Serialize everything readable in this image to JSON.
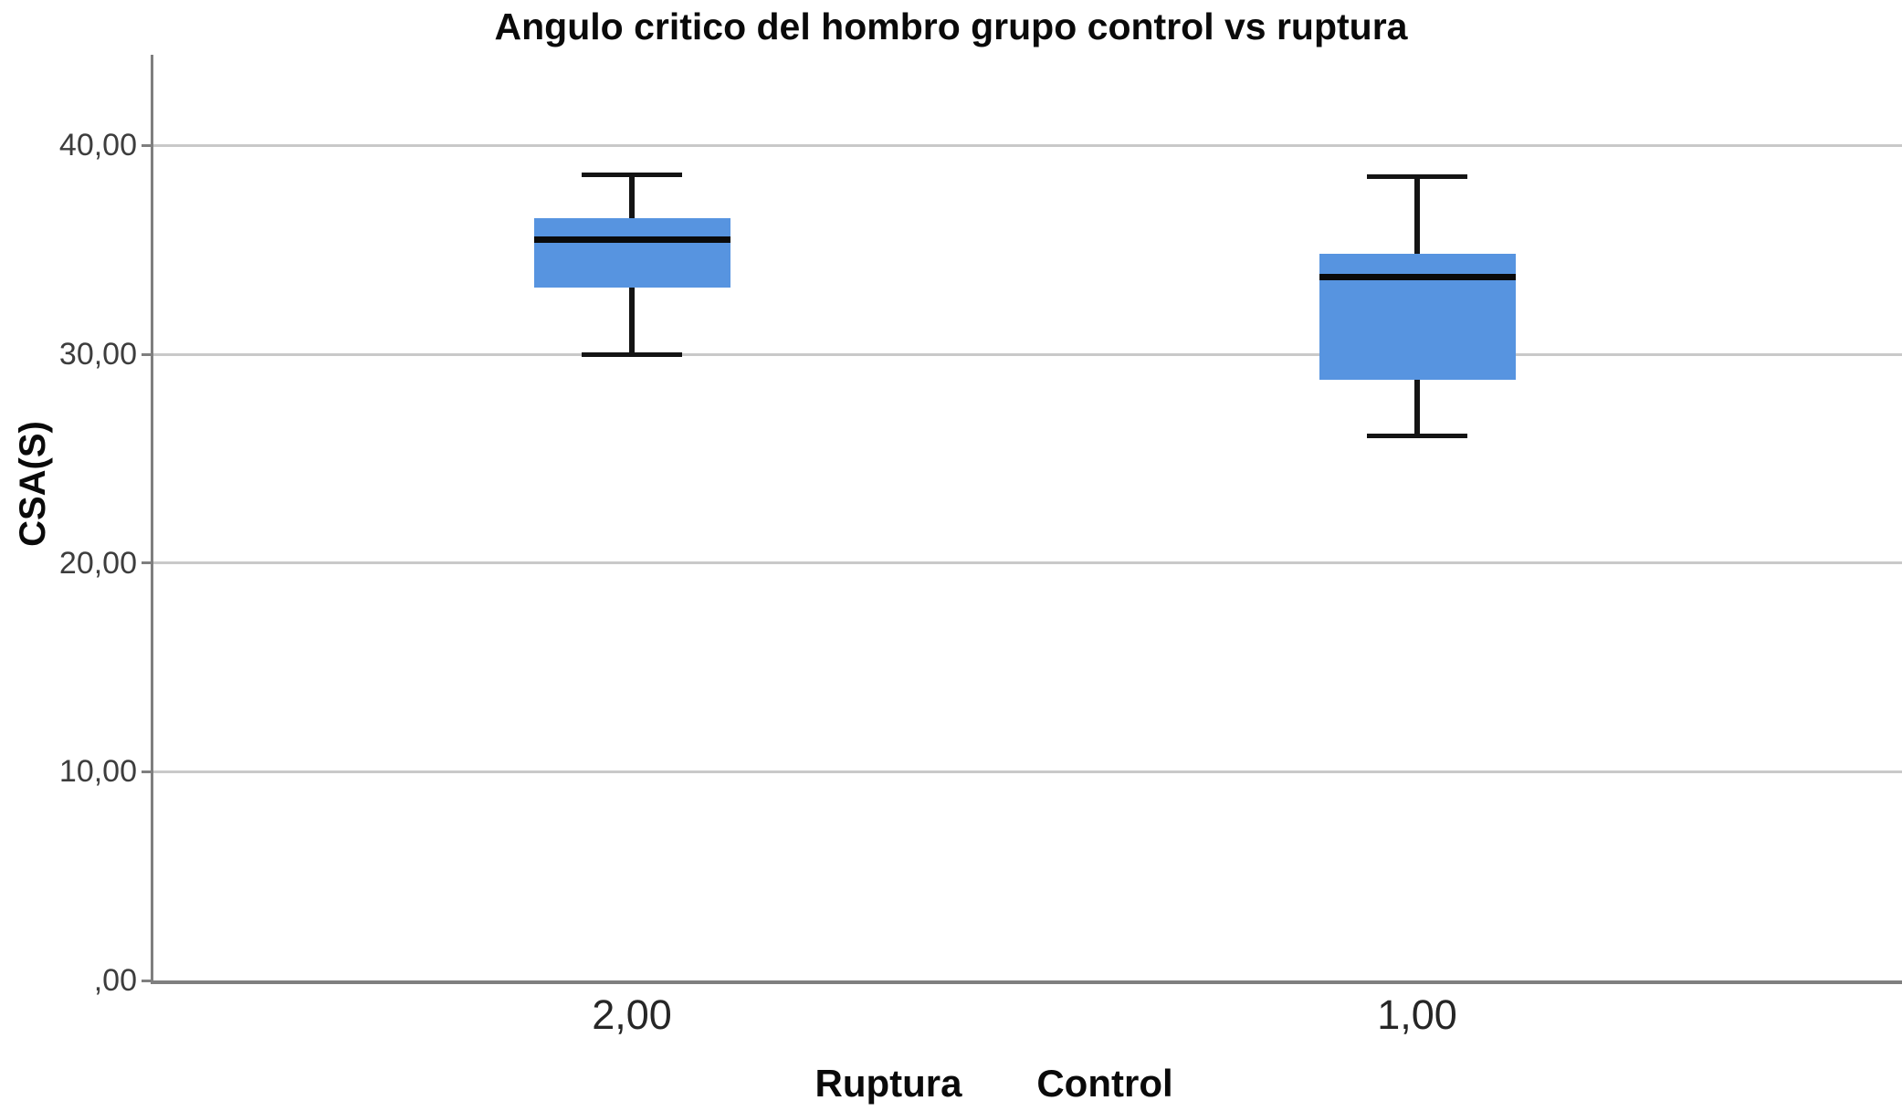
{
  "chart_data": {
    "type": "boxplot",
    "title": "Angulo critico del hombro grupo control vs ruptura",
    "ylabel": "CSA(S)",
    "xlabel": "",
    "y_axis": {
      "range": [
        0,
        44.35
      ],
      "grid": true,
      "ticks": [
        {
          "value": 0,
          "label": ",00"
        },
        {
          "value": 10,
          "label": "10,00"
        },
        {
          "value": 20,
          "label": "20,00"
        },
        {
          "value": 30,
          "label": "30,00"
        },
        {
          "value": 40,
          "label": "40,00"
        }
      ]
    },
    "series": [
      {
        "category": "2,00",
        "group": "Ruptura",
        "whisker_low": 30.0,
        "q1": 33.2,
        "median": 35.5,
        "q3": 36.5,
        "whisker_high": 38.6
      },
      {
        "category": "1,00",
        "group": "Control",
        "whisker_low": 26.1,
        "q1": 28.8,
        "median": 33.7,
        "q3": 34.8,
        "whisker_high": 38.5
      }
    ],
    "colors": {
      "box_fill": "#5794E0",
      "median": "#0a0a0a",
      "whisker": "#141414",
      "gridline": "#c9c9c9",
      "axis": "#7f7f7f"
    }
  }
}
